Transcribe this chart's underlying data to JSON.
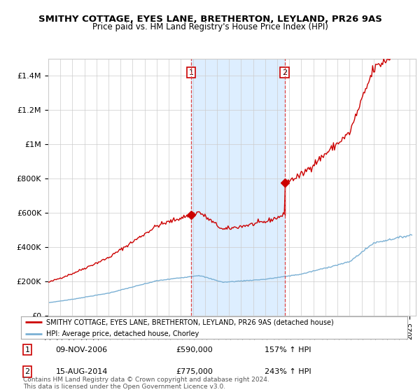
{
  "title1": "SMITHY COTTAGE, EYES LANE, BRETHERTON, LEYLAND, PR26 9AS",
  "title2": "Price paid vs. HM Land Registry's House Price Index (HPI)",
  "legend_line1": "SMITHY COTTAGE, EYES LANE, BRETHERTON, LEYLAND, PR26 9AS (detached house)",
  "legend_line2": "HPI: Average price, detached house, Chorley",
  "transaction1_date": "09-NOV-2006",
  "transaction1_price": "£590,000",
  "transaction1_hpi": "157% ↑ HPI",
  "transaction2_date": "15-AUG-2014",
  "transaction2_price": "£775,000",
  "transaction2_hpi": "243% ↑ HPI",
  "footer": "Contains HM Land Registry data © Crown copyright and database right 2024.\nThis data is licensed under the Open Government Licence v3.0.",
  "yticks": [
    0,
    200000,
    400000,
    600000,
    800000,
    1000000,
    1200000,
    1400000
  ],
  "ytick_labels": [
    "£0",
    "£200K",
    "£400K",
    "£600K",
    "£800K",
    "£1M",
    "£1.2M",
    "£1.4M"
  ],
  "line_color_red": "#cc0000",
  "line_color_blue": "#7ab0d4",
  "vline_color": "#dd4444",
  "shade_color": "#ddeeff",
  "transaction1_x": 2006.85,
  "transaction1_y": 590000,
  "transaction2_x": 2014.62,
  "transaction2_y": 775000,
  "background_color": "#ffffff",
  "grid_color": "#cccccc",
  "xlim_lo": 1995,
  "xlim_hi": 2025.5,
  "ylim_lo": 0,
  "ylim_hi": 1500000
}
